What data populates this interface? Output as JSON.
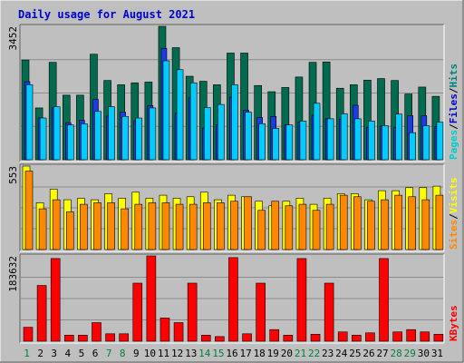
{
  "window": {
    "title": "Daily usage for August 2021",
    "title_color": "#0000cc",
    "background": "#bfbfbf"
  },
  "chart_data": [
    {
      "type": "bar",
      "panel": "pages-files-hits",
      "ymax_label": "3452",
      "ylim": [
        0,
        3452
      ],
      "grid": true,
      "legend": {
        "placement": "right-vertical",
        "items": [
          {
            "label": "Pages",
            "color": "#00cccc"
          },
          {
            "label": "Files",
            "color": "#0000cc"
          },
          {
            "label": "Hits",
            "color": "#008080"
          }
        ],
        "separator": "/"
      },
      "categories": [
        "1",
        "2",
        "3",
        "4",
        "5",
        "6",
        "7",
        "8",
        "9",
        "10",
        "11",
        "12",
        "13",
        "14",
        "15",
        "16",
        "17",
        "18",
        "19",
        "20",
        "21",
        "22",
        "23",
        "24",
        "25",
        "26",
        "27",
        "28",
        "29",
        "30",
        "31"
      ],
      "weekend_days": [
        "1",
        "7",
        "8",
        "14",
        "15",
        "21",
        "22",
        "28",
        "29"
      ],
      "series": [
        {
          "name": "Hits",
          "color": "#006b4f",
          "values": [
            2580,
            1340,
            2520,
            1670,
            1670,
            2730,
            2050,
            1940,
            1990,
            2010,
            3452,
            2900,
            2160,
            2030,
            1940,
            2760,
            2760,
            1920,
            1760,
            1870,
            2140,
            2520,
            2530,
            1850,
            1940,
            2060,
            2100,
            2050,
            1700,
            1880,
            1640
          ]
        },
        {
          "name": "Files",
          "color": "#1a3ce6",
          "values": [
            2020,
            1080,
            1340,
            950,
            1020,
            1560,
            1130,
            1230,
            1010,
            1400,
            2880,
            1200,
            1600,
            820,
            900,
            1620,
            1280,
            1090,
            1120,
            900,
            980,
            1150,
            1060,
            1050,
            1410,
            830,
            870,
            840,
            1140,
            1140,
            860
          ]
        },
        {
          "name": "Pages",
          "color": "#00ccff",
          "values": [
            1940,
            1080,
            1370,
            900,
            930,
            1250,
            1370,
            1120,
            1080,
            1340,
            2560,
            2330,
            1990,
            1350,
            1430,
            1940,
            1230,
            930,
            810,
            900,
            1000,
            1460,
            1060,
            1190,
            1060,
            1000,
            880,
            1180,
            700,
            880,
            970
          ]
        }
      ]
    },
    {
      "type": "bar",
      "panel": "sites-visits",
      "ymax_label": "553",
      "ylim": [
        0,
        553
      ],
      "grid": true,
      "legend": {
        "placement": "right-vertical",
        "items": [
          {
            "label": "Sites",
            "color": "#ff8800"
          },
          {
            "label": "Visits",
            "color": "#ffff00"
          }
        ],
        "separator": "/"
      },
      "categories": [
        "1",
        "2",
        "3",
        "4",
        "5",
        "6",
        "7",
        "8",
        "9",
        "10",
        "11",
        "12",
        "13",
        "14",
        "15",
        "16",
        "17",
        "18",
        "19",
        "20",
        "21",
        "22",
        "23",
        "24",
        "25",
        "26",
        "27",
        "28",
        "29",
        "30",
        "31"
      ],
      "series": [
        {
          "name": "Visits",
          "color": "#ffff00",
          "values": [
            553,
            310,
            400,
            330,
            340,
            330,
            370,
            340,
            380,
            340,
            360,
            340,
            350,
            380,
            330,
            360,
            350,
            320,
            290,
            320,
            340,
            300,
            340,
            370,
            370,
            330,
            390,
            390,
            410,
            410,
            420
          ]
        },
        {
          "name": "Sites",
          "color": "#ff8800",
          "values": [
            520,
            270,
            330,
            250,
            300,
            310,
            310,
            270,
            300,
            310,
            310,
            300,
            300,
            310,
            310,
            320,
            350,
            260,
            320,
            290,
            300,
            260,
            300,
            360,
            350,
            320,
            330,
            360,
            350,
            330,
            360
          ]
        }
      ]
    },
    {
      "type": "bar",
      "panel": "kbytes",
      "ymax_label": "183632",
      "ylim": [
        0,
        183632
      ],
      "grid": true,
      "legend": {
        "placement": "right-vertical",
        "items": [
          {
            "label": "KBytes",
            "color": "#ff0000"
          }
        ]
      },
      "categories": [
        "1",
        "2",
        "3",
        "4",
        "5",
        "6",
        "7",
        "8",
        "9",
        "10",
        "11",
        "12",
        "13",
        "14",
        "15",
        "16",
        "17",
        "18",
        "19",
        "20",
        "21",
        "22",
        "23",
        "24",
        "25",
        "26",
        "27",
        "28",
        "29",
        "30",
        "31"
      ],
      "series": [
        {
          "name": "KBytes",
          "color": "#ff0000",
          "values": [
            30000,
            120000,
            178000,
            13000,
            13000,
            40000,
            16000,
            16000,
            125000,
            183632,
            50000,
            40000,
            125000,
            13000,
            10000,
            180000,
            16000,
            125000,
            25000,
            13000,
            178000,
            15000,
            125000,
            20000,
            13000,
            18000,
            178000,
            20000,
            25000,
            20000,
            15000
          ]
        }
      ]
    }
  ]
}
